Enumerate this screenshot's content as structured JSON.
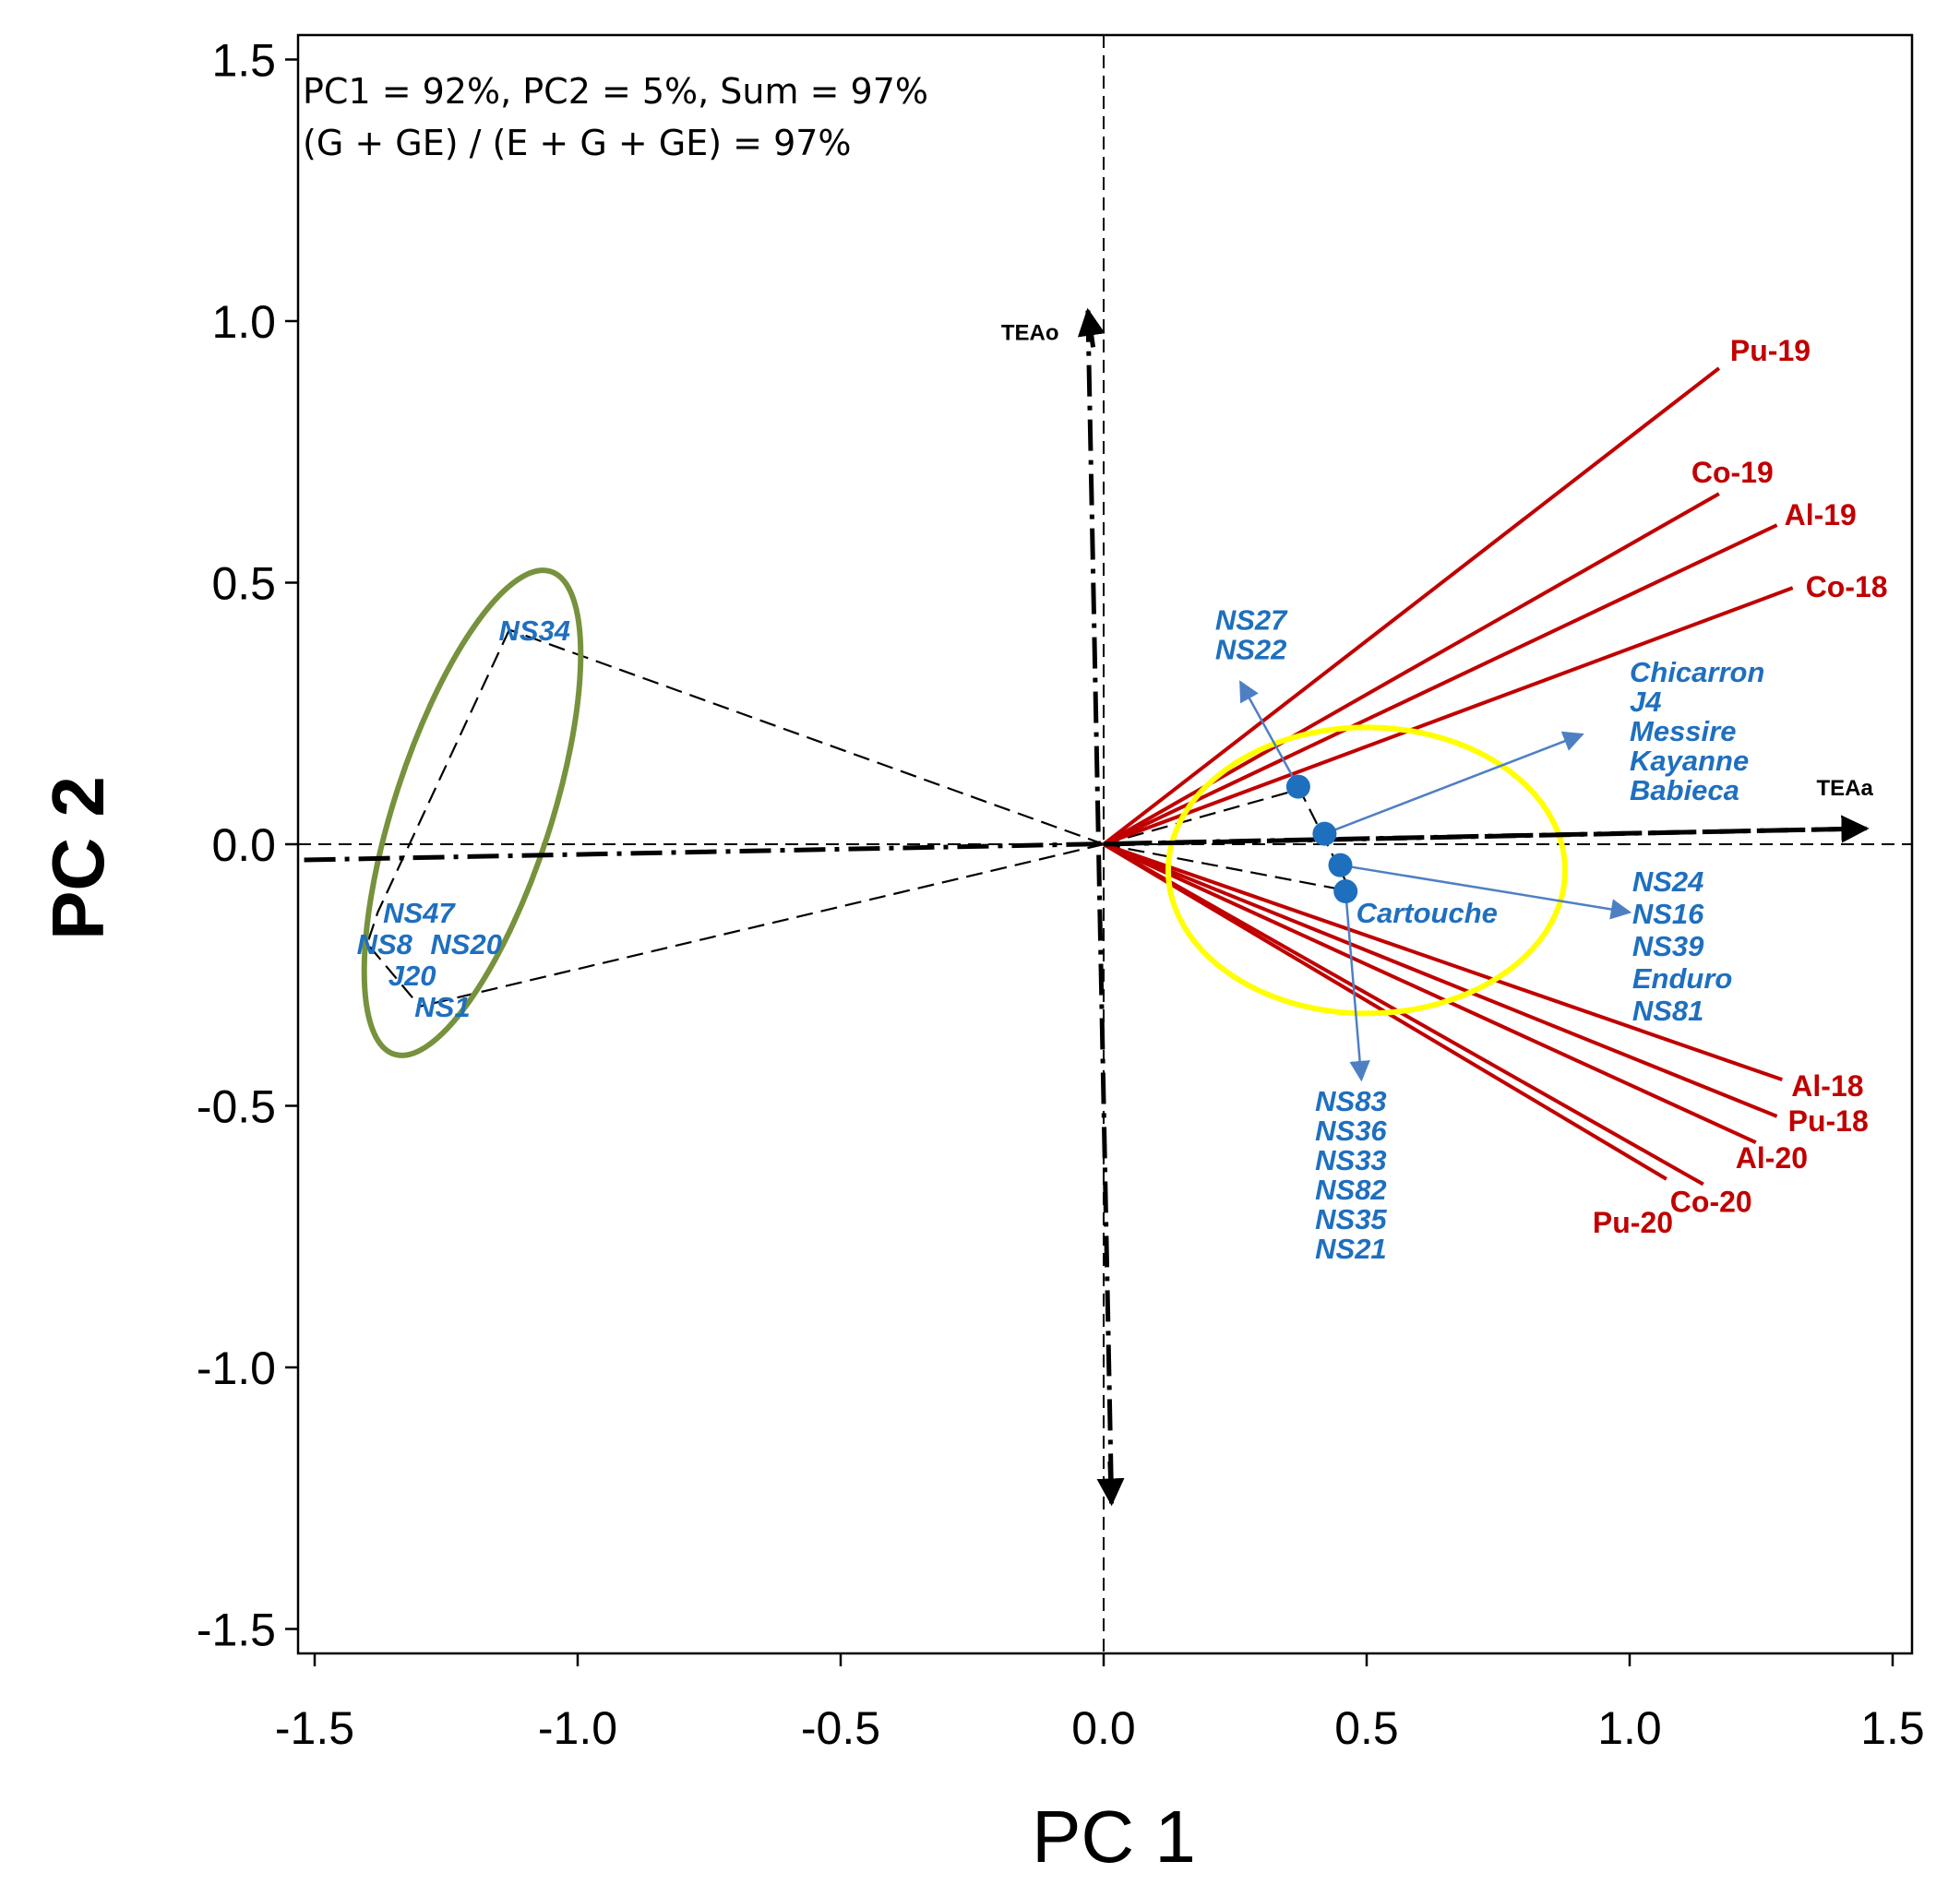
{
  "chart_data": {
    "type": "scatter",
    "subtype": "GGE biplot (which-won-where)",
    "xlabel": "PC 1",
    "ylabel": "PC 2",
    "xlim": [
      -1.53,
      1.53
    ],
    "ylim": [
      -1.55,
      1.55
    ],
    "xticks": [
      "-1.5",
      "-1.0",
      "-0.5",
      "0.0",
      "0.5",
      "1.0",
      "1.5"
    ],
    "yticks": [
      "1.5",
      "1.0",
      "0.5",
      "0.0",
      "-0.5",
      "-1.0",
      "-1.5"
    ],
    "annotations": [
      "PC1 =  92%, PC2 = 5%, Sum = 97%",
      "(G + GE) / (E + G + GE) = 97%"
    ],
    "environments": [
      {
        "name": "Pu-19",
        "x": 1.17,
        "y": 0.91
      },
      {
        "name": "Co-19",
        "x": 1.17,
        "y": 0.67
      },
      {
        "name": "Al-19",
        "x": 1.28,
        "y": 0.61
      },
      {
        "name": "Co-18",
        "x": 1.31,
        "y": 0.49
      },
      {
        "name": "Al-18",
        "x": 1.29,
        "y": -0.45
      },
      {
        "name": "Pu-18",
        "x": 1.28,
        "y": -0.52
      },
      {
        "name": "Al-20",
        "x": 1.24,
        "y": -0.57
      },
      {
        "name": "Co-20",
        "x": 1.14,
        "y": -0.65
      },
      {
        "name": "Pu-20",
        "x": 1.07,
        "y": -0.64
      }
    ],
    "genotype_groups": [
      {
        "names": [
          "NS27",
          "NS22"
        ],
        "x": 0.37,
        "y": 0.11
      },
      {
        "names": [
          "Chicarron",
          "J4",
          "Messire",
          "Kayanne",
          "Babieca"
        ],
        "x": 0.42,
        "y": 0.02
      },
      {
        "names": [
          "NS24",
          "NS16",
          "NS39",
          "Enduro",
          "NS81"
        ],
        "x": 0.45,
        "y": -0.04
      },
      {
        "names": [
          "NS83",
          "NS36",
          "NS33",
          "NS82",
          "NS35",
          "NS21"
        ],
        "x": 0.46,
        "y": -0.09
      }
    ],
    "genotypes_single": [
      {
        "name": "Cartouche"
      },
      {
        "name": "NS34",
        "x": -1.13,
        "y": 0.41
      },
      {
        "name": "NS47",
        "x": -1.38,
        "y": -0.13
      },
      {
        "name": "NS8",
        "x": -1.4,
        "y": -0.19
      },
      {
        "name": "NS20",
        "x": -1.36,
        "y": -0.19
      },
      {
        "name": "J20",
        "x": -1.37,
        "y": -0.24
      },
      {
        "name": "NS1",
        "x": -1.3,
        "y": -0.31
      }
    ],
    "polygon_vertices": [
      {
        "x": -1.13,
        "y": 0.41
      },
      {
        "x": -1.38,
        "y": -0.13
      },
      {
        "x": -1.4,
        "y": -0.19
      },
      {
        "x": -1.3,
        "y": -0.31
      }
    ],
    "tea_axes": [
      {
        "name": "TEAo",
        "from": [
          0.0,
          0.0
        ],
        "to": [
          -0.03,
          1.02
        ]
      },
      {
        "name": "TEAa",
        "from": [
          0.0,
          0.0
        ],
        "to": [
          1.45,
          0.03
        ]
      }
    ]
  }
}
